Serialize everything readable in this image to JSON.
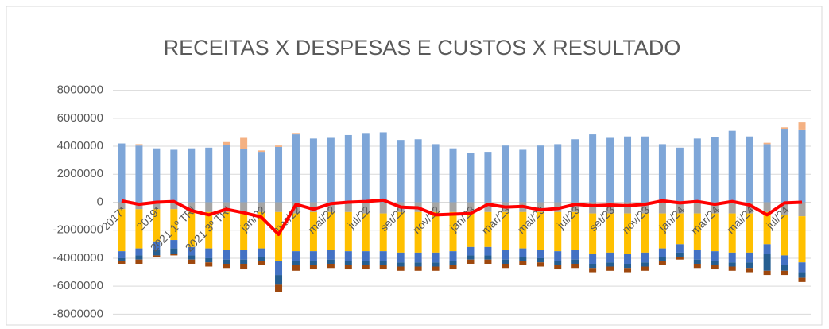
{
  "chart_data": {
    "type": "bar",
    "stacked": true,
    "title": "RECEITAS X DESPESAS E CUSTOS X RESULTADO",
    "categories": [
      "2017*",
      null,
      "2019*",
      null,
      "2021 1º TRI",
      null,
      "2021 3º TRI",
      null,
      "jan/22",
      null,
      "mar/22",
      null,
      "mai/22",
      null,
      "jul/22",
      null,
      "set/22",
      null,
      "nov/22",
      null,
      "jan/23",
      null,
      "mar/23",
      null,
      "mai/23",
      null,
      "jul/23",
      null,
      "set/23",
      null,
      "nov/23",
      null,
      "jan/24",
      null,
      "mar/24",
      null,
      "mai/24",
      null,
      "jul/24",
      null
    ],
    "ylim": [
      -9000000,
      9000000
    ],
    "yticks": [
      -8000000,
      -6000000,
      -4000000,
      -2000000,
      0,
      2000000,
      4000000,
      6000000,
      8000000
    ],
    "grid": true,
    "series": [
      {
        "color": "#7ea6d8",
        "values": [
          4200000,
          4050000,
          3850000,
          3750000,
          3850000,
          3900000,
          4100000,
          3800000,
          3600000,
          3950000,
          4850000,
          4550000,
          4600000,
          4800000,
          4950000,
          5000000,
          4450000,
          4500000,
          4150000,
          3850000,
          3500000,
          3600000,
          4050000,
          3750000,
          4050000,
          4150000,
          4500000,
          4850000,
          4600000,
          4700000,
          4700000,
          4150000,
          3900000,
          4550000,
          4650000,
          5100000,
          4700000,
          4150000,
          5250000,
          5200000
        ]
      },
      {
        "color": "#f4b183",
        "values": [
          0,
          100000,
          0,
          0,
          0,
          0,
          200000,
          800000,
          100000,
          100000,
          100000,
          0,
          0,
          0,
          0,
          0,
          0,
          0,
          0,
          0,
          0,
          0,
          0,
          0,
          0,
          0,
          0,
          0,
          0,
          0,
          0,
          0,
          0,
          0,
          0,
          0,
          0,
          100000,
          100000,
          500000
        ]
      },
      {
        "color": "#a5a5a5",
        "values": [
          -500000,
          -500000,
          -500000,
          -500000,
          -700000,
          -700000,
          -700000,
          -700000,
          -700000,
          -700000,
          -800000,
          -700000,
          -700000,
          -700000,
          -800000,
          -800000,
          -700000,
          -700000,
          -700000,
          -700000,
          -700000,
          -700000,
          -700000,
          -700000,
          -700000,
          -700000,
          -700000,
          -800000,
          -800000,
          -800000,
          -800000,
          -800000,
          -800000,
          -800000,
          -800000,
          -800000,
          -800000,
          -700000,
          -900000,
          -1000000
        ]
      },
      {
        "color": "#ffc000",
        "values": [
          -3000000,
          -2800000,
          -2300000,
          -2200000,
          -2500000,
          -2600000,
          -2700000,
          -2700000,
          -2600000,
          -3500000,
          -2700000,
          -2800000,
          -2700000,
          -2800000,
          -2700000,
          -2700000,
          -2900000,
          -2900000,
          -2900000,
          -2800000,
          -2500000,
          -2500000,
          -2700000,
          -2600000,
          -2700000,
          -2800000,
          -2700000,
          -2900000,
          -2800000,
          -2900000,
          -2800000,
          -2500000,
          -2200000,
          -2600000,
          -2700000,
          -2800000,
          -2800000,
          -2300000,
          -2900000,
          -3300000
        ]
      },
      {
        "color": "#4472c4",
        "values": [
          -500000,
          -500000,
          -600000,
          -600000,
          -600000,
          -700000,
          -700000,
          -700000,
          -600000,
          -1000000,
          -700000,
          -700000,
          -700000,
          -700000,
          -700000,
          -700000,
          -700000,
          -700000,
          -700000,
          -700000,
          -600000,
          -600000,
          -700000,
          -600000,
          -600000,
          -700000,
          -700000,
          -700000,
          -700000,
          -700000,
          -700000,
          -600000,
          -600000,
          -700000,
          -700000,
          -700000,
          -700000,
          -700000,
          -700000,
          -700000
        ]
      },
      {
        "color": "#255e91",
        "values": [
          -200000,
          -300000,
          -400000,
          -400000,
          -300000,
          -300000,
          -300000,
          -300000,
          -300000,
          -700000,
          -300000,
          -300000,
          -300000,
          -300000,
          -300000,
          -300000,
          -300000,
          -300000,
          -300000,
          -300000,
          -300000,
          -300000,
          -300000,
          -300000,
          -300000,
          -300000,
          -300000,
          -300000,
          -300000,
          -300000,
          -300000,
          -300000,
          -300000,
          -300000,
          -300000,
          -300000,
          -400000,
          -1200000,
          -400000,
          -400000
        ]
      },
      {
        "color": "#9e480e",
        "values": [
          -200000,
          -300000,
          -100000,
          -100000,
          -300000,
          -300000,
          -300000,
          -400000,
          -300000,
          -500000,
          -400000,
          -300000,
          -300000,
          -300000,
          -300000,
          -300000,
          -300000,
          -300000,
          -300000,
          -300000,
          -300000,
          -300000,
          -300000,
          -300000,
          -300000,
          -300000,
          -300000,
          -300000,
          -300000,
          -300000,
          -300000,
          -300000,
          -200000,
          -300000,
          -300000,
          -300000,
          -300000,
          -300000,
          -300000,
          -300000
        ]
      },
      {
        "type": "line",
        "color": "#ff0000",
        "values": [
          100000,
          -150000,
          0,
          50000,
          -600000,
          -900000,
          -500000,
          -750000,
          -1050000,
          -2300000,
          -150000,
          -500000,
          -100000,
          0,
          50000,
          150000,
          -350000,
          -400000,
          -900000,
          -850000,
          -800000,
          -150000,
          -350000,
          -300000,
          -550000,
          -450000,
          -150000,
          -250000,
          -200000,
          -250000,
          -150000,
          100000,
          -50000,
          50000,
          -150000,
          50000,
          -200000,
          -900000,
          -50000,
          0
        ]
      }
    ]
  }
}
